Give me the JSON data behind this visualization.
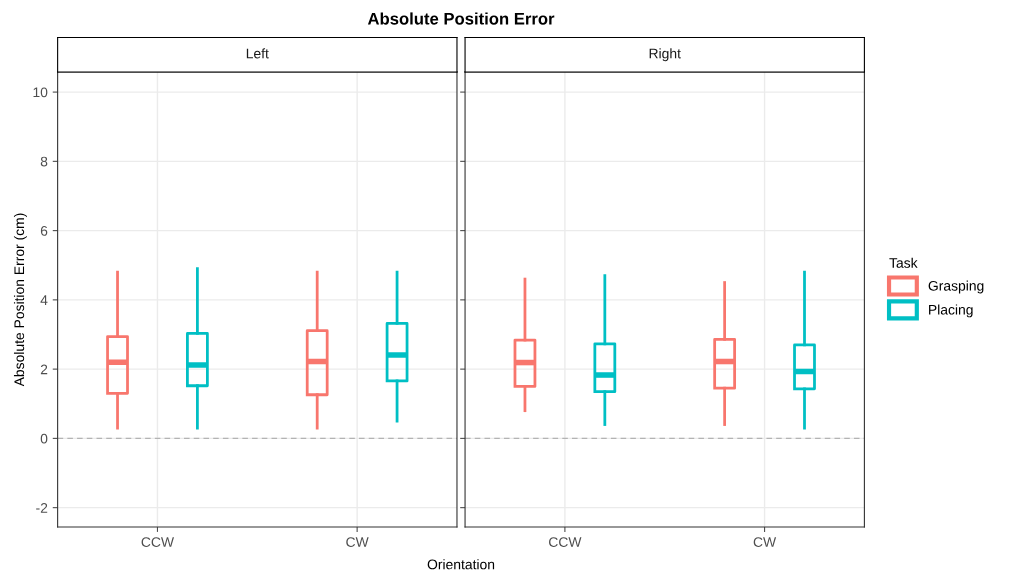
{
  "chart_data": [
    {
      "type": "box",
      "title": "Absolute Position Error",
      "subtitle": "Left",
      "xlabel": "Orientation",
      "ylabel": "Absolute Position Error (cm)",
      "categories": [
        "CCW",
        "CW"
      ],
      "ylim": [
        -2.56,
        10.58
      ],
      "yticks": [
        -2,
        0,
        2,
        4,
        6,
        8,
        10
      ],
      "grid": true,
      "tick_labels": "xy",
      "legend": "right",
      "legend_title": "Task",
      "ref_lines": [
        {
          "axis": "y",
          "value": 0,
          "color": "#b3b3b3",
          "line_style": "dashed"
        }
      ],
      "series": [
        {
          "name": "Grasping",
          "color": "#f8766d",
          "boxes": [
            {
              "low": 0.3,
              "q1": 1.3,
              "median": 2.2,
              "q3": 2.94,
              "high": 4.8
            },
            {
              "low": 0.3,
              "q1": 1.26,
              "median": 2.22,
              "q3": 3.11,
              "high": 4.8
            }
          ]
        },
        {
          "name": "Placing",
          "color": "#00bfc4",
          "boxes": [
            {
              "low": 0.3,
              "q1": 1.52,
              "median": 2.12,
              "q3": 3.03,
              "high": 4.9
            },
            {
              "low": 0.5,
              "q1": 1.66,
              "median": 2.41,
              "q3": 3.32,
              "high": 4.8
            }
          ]
        }
      ]
    },
    {
      "type": "box",
      "subtitle": "Right",
      "categories": [
        "CCW",
        "CW"
      ],
      "ylim": [
        -2.56,
        10.58
      ],
      "yticks": [
        -2,
        0,
        2,
        4,
        6,
        8,
        10
      ],
      "grid": true,
      "tick_labels": "x",
      "ref_lines": [
        {
          "axis": "y",
          "value": 0,
          "color": "#b3b3b3",
          "line_style": "dashed"
        }
      ],
      "series": [
        {
          "color": "#f8766d",
          "boxes": [
            {
              "low": 0.8,
              "q1": 1.5,
              "median": 2.19,
              "q3": 2.84,
              "high": 4.6
            },
            {
              "low": 0.4,
              "q1": 1.45,
              "median": 2.22,
              "q3": 2.86,
              "high": 4.5
            }
          ]
        },
        {
          "color": "#00bfc4",
          "boxes": [
            {
              "low": 0.4,
              "q1": 1.35,
              "median": 1.83,
              "q3": 2.73,
              "high": 4.7
            },
            {
              "low": 0.3,
              "q1": 1.43,
              "median": 1.93,
              "q3": 2.7,
              "high": 4.8
            }
          ]
        }
      ]
    }
  ]
}
